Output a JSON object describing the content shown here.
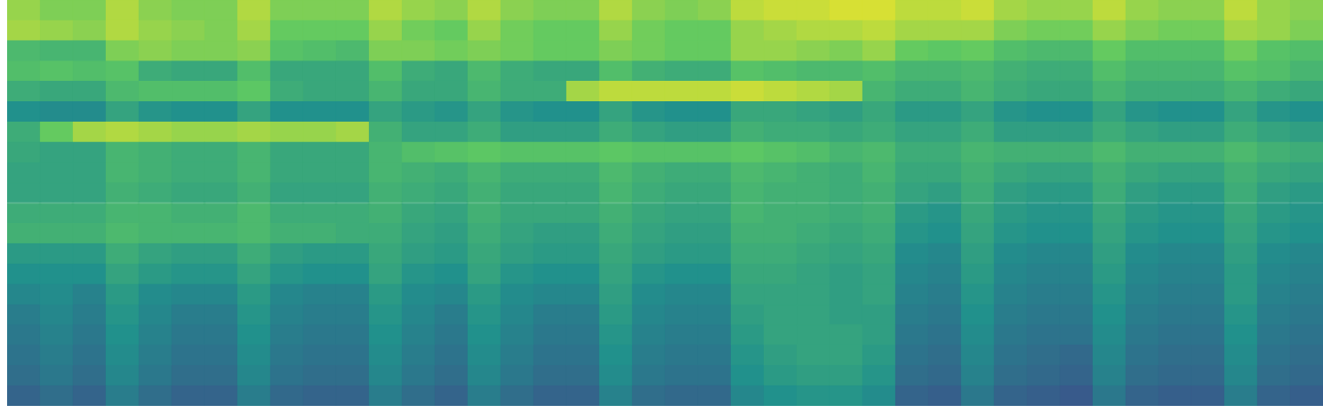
{
  "chart_data": {
    "type": "heatmap",
    "categories": [
      null,
      null,
      null,
      null,
      null,
      null,
      null,
      null,
      null,
      null,
      null,
      null,
      null,
      null,
      null,
      null,
      null,
      null,
      null,
      null,
      null,
      null,
      null,
      null,
      null,
      null,
      null,
      null,
      null,
      null,
      null,
      null,
      null,
      null,
      null,
      null,
      null,
      null,
      null,
      null
    ],
    "ybins": [
      0,
      1,
      2,
      3,
      4,
      5,
      6,
      7,
      8,
      9,
      10,
      11,
      12,
      13,
      14,
      15,
      16,
      17,
      18,
      19,
      20
    ],
    "ylim": [
      0,
      20
    ],
    "zlim": [
      0,
      100
    ],
    "grid": false,
    "tick_labels": false,
    "cells": [
      [
        32,
        36,
        32,
        42,
        36,
        32,
        32,
        42,
        34,
        32,
        32,
        42,
        36,
        32,
        42,
        36,
        32,
        32,
        44,
        36,
        34,
        34,
        46,
        50,
        52,
        52,
        48,
        32,
        30,
        40,
        32,
        30,
        28,
        40,
        32,
        30,
        30,
        42,
        32,
        30
      ],
      [
        36,
        40,
        36,
        46,
        40,
        36,
        36,
        46,
        38,
        36,
        36,
        46,
        40,
        36,
        46,
        40,
        36,
        36,
        48,
        40,
        38,
        38,
        50,
        54,
        56,
        56,
        52,
        36,
        34,
        44,
        36,
        34,
        32,
        44,
        36,
        34,
        34,
        46,
        36,
        34
      ],
      [
        38,
        42,
        38,
        48,
        42,
        38,
        38,
        48,
        40,
        38,
        38,
        48,
        42,
        38,
        48,
        42,
        38,
        38,
        50,
        42,
        40,
        40,
        52,
        56,
        58,
        58,
        54,
        38,
        36,
        46,
        38,
        36,
        34,
        46,
        38,
        36,
        36,
        48,
        38,
        36
      ],
      [
        40,
        44,
        40,
        50,
        44,
        40,
        40,
        50,
        42,
        40,
        40,
        50,
        44,
        40,
        50,
        44,
        40,
        40,
        52,
        44,
        42,
        42,
        54,
        58,
        58,
        58,
        56,
        40,
        38,
        48,
        40,
        38,
        38,
        48,
        40,
        38,
        38,
        50,
        40,
        38
      ],
      [
        42,
        46,
        42,
        52,
        46,
        42,
        42,
        52,
        44,
        42,
        42,
        52,
        46,
        42,
        52,
        46,
        42,
        42,
        54,
        46,
        44,
        44,
        56,
        58,
        58,
        56,
        56,
        42,
        40,
        50,
        42,
        40,
        40,
        50,
        42,
        40,
        40,
        52,
        42,
        40
      ],
      [
        46,
        48,
        44,
        54,
        48,
        46,
        46,
        54,
        46,
        44,
        44,
        54,
        48,
        46,
        54,
        48,
        46,
        46,
        56,
        48,
        46,
        46,
        58,
        58,
        58,
        56,
        58,
        44,
        42,
        52,
        44,
        42,
        42,
        52,
        44,
        42,
        42,
        54,
        44,
        42
      ],
      [
        50,
        50,
        50,
        58,
        54,
        52,
        52,
        58,
        52,
        50,
        50,
        58,
        52,
        50,
        58,
        52,
        50,
        50,
        58,
        52,
        50,
        50,
        60,
        60,
        58,
        56,
        58,
        46,
        44,
        54,
        46,
        44,
        44,
        54,
        46,
        44,
        44,
        54,
        46,
        44
      ],
      [
        54,
        54,
        54,
        62,
        58,
        56,
        56,
        62,
        56,
        54,
        54,
        60,
        56,
        54,
        60,
        56,
        54,
        54,
        60,
        56,
        54,
        54,
        62,
        62,
        60,
        58,
        60,
        48,
        46,
        56,
        48,
        46,
        46,
        56,
        48,
        46,
        46,
        56,
        48,
        46
      ],
      [
        64,
        64,
        64,
        68,
        66,
        66,
        66,
        68,
        64,
        64,
        62,
        62,
        58,
        56,
        62,
        58,
        56,
        56,
        62,
        58,
        56,
        56,
        64,
        64,
        62,
        60,
        62,
        52,
        50,
        58,
        52,
        50,
        50,
        58,
        52,
        50,
        50,
        58,
        52,
        50
      ],
      [
        62,
        62,
        62,
        66,
        66,
        64,
        64,
        68,
        62,
        62,
        62,
        64,
        60,
        58,
        64,
        60,
        60,
        60,
        64,
        60,
        58,
        58,
        66,
        64,
        64,
        62,
        64,
        54,
        52,
        60,
        54,
        52,
        52,
        60,
        54,
        52,
        52,
        60,
        54,
        52
      ],
      [
        58,
        58,
        58,
        64,
        62,
        60,
        60,
        64,
        58,
        58,
        58,
        64,
        62,
        60,
        64,
        60,
        60,
        60,
        66,
        62,
        60,
        60,
        66,
        64,
        64,
        62,
        64,
        58,
        56,
        62,
        56,
        54,
        54,
        62,
        56,
        54,
        54,
        62,
        56,
        54
      ],
      [
        58,
        58,
        58,
        66,
        64,
        62,
        62,
        66,
        60,
        60,
        60,
        66,
        64,
        62,
        66,
        62,
        62,
        62,
        68,
        64,
        62,
        62,
        68,
        66,
        64,
        62,
        66,
        60,
        60,
        64,
        60,
        58,
        58,
        64,
        60,
        58,
        58,
        64,
        60,
        58
      ],
      [
        60,
        58,
        58,
        66,
        64,
        62,
        62,
        66,
        60,
        60,
        60,
        66,
        70,
        72,
        74,
        72,
        72,
        72,
        74,
        72,
        72,
        72,
        74,
        72,
        70,
        66,
        68,
        62,
        62,
        66,
        64,
        64,
        64,
        68,
        64,
        64,
        64,
        68,
        64,
        62
      ],
      [
        62,
        76,
        86,
        88,
        86,
        84,
        84,
        86,
        84,
        84,
        86,
        64,
        58,
        58,
        62,
        56,
        56,
        56,
        62,
        58,
        56,
        56,
        64,
        62,
        62,
        60,
        62,
        58,
        58,
        62,
        56,
        56,
        56,
        62,
        58,
        56,
        56,
        62,
        58,
        56
      ],
      [
        50,
        48,
        48,
        58,
        52,
        50,
        50,
        58,
        50,
        50,
        50,
        58,
        54,
        52,
        58,
        52,
        50,
        50,
        58,
        52,
        50,
        50,
        60,
        60,
        58,
        56,
        60,
        54,
        54,
        58,
        52,
        50,
        50,
        58,
        52,
        50,
        50,
        58,
        52,
        50
      ],
      [
        62,
        60,
        60,
        68,
        70,
        70,
        70,
        74,
        62,
        60,
        60,
        66,
        60,
        60,
        66,
        62,
        62,
        86,
        90,
        90,
        90,
        90,
        92,
        90,
        88,
        86,
        66,
        62,
        62,
        66,
        62,
        60,
        60,
        66,
        62,
        62,
        62,
        66,
        62,
        60
      ],
      [
        70,
        72,
        70,
        72,
        62,
        60,
        60,
        70,
        60,
        60,
        60,
        70,
        62,
        60,
        68,
        62,
        60,
        60,
        70,
        64,
        62,
        62,
        72,
        70,
        68,
        68,
        70,
        66,
        66,
        68,
        64,
        62,
        62,
        70,
        66,
        66,
        66,
        72,
        70,
        66
      ],
      [
        68,
        66,
        66,
        80,
        82,
        80,
        80,
        82,
        72,
        70,
        68,
        80,
        80,
        78,
        80,
        78,
        76,
        76,
        80,
        78,
        76,
        76,
        84,
        84,
        82,
        80,
        84,
        76,
        74,
        76,
        70,
        68,
        68,
        76,
        70,
        70,
        70,
        78,
        72,
        70
      ],
      [
        86,
        84,
        82,
        88,
        84,
        82,
        80,
        86,
        76,
        76,
        76,
        84,
        78,
        76,
        84,
        78,
        76,
        76,
        84,
        78,
        76,
        76,
        84,
        86,
        88,
        88,
        90,
        86,
        86,
        86,
        80,
        78,
        78,
        84,
        80,
        78,
        78,
        86,
        84,
        80
      ],
      [
        84,
        80,
        80,
        88,
        82,
        80,
        80,
        88,
        80,
        80,
        80,
        88,
        84,
        82,
        88,
        82,
        80,
        80,
        88,
        82,
        80,
        82,
        90,
        92,
        92,
        94,
        94,
        90,
        90,
        92,
        86,
        84,
        84,
        90,
        84,
        82,
        82,
        90,
        84,
        82
      ]
    ]
  }
}
